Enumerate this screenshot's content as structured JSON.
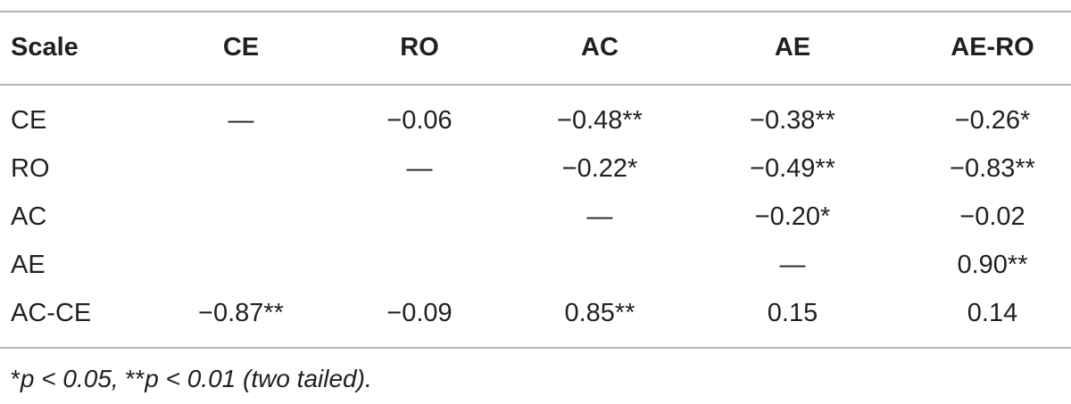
{
  "table": {
    "header": [
      "Scale",
      "CE",
      "RO",
      "AC",
      "AE",
      "AE-RO"
    ],
    "rows": [
      [
        "CE",
        "—",
        "−0.06",
        "−0.48**",
        "−0.38**",
        "−0.26*"
      ],
      [
        "RO",
        null,
        "—",
        "−0.22*",
        "−0.49**",
        "−0.83**"
      ],
      [
        "AC",
        null,
        null,
        "—",
        "−0.20*",
        "−0.02"
      ],
      [
        "AE",
        null,
        null,
        null,
        "—",
        "0.90**"
      ],
      [
        "AC-CE",
        "−0.87**",
        "−0.09",
        "0.85**",
        "0.15",
        "0.14"
      ]
    ]
  },
  "footnote": [
    "*",
    "p < 0.05, ",
    "**",
    "p < 0.01 (two tailed)."
  ]
}
